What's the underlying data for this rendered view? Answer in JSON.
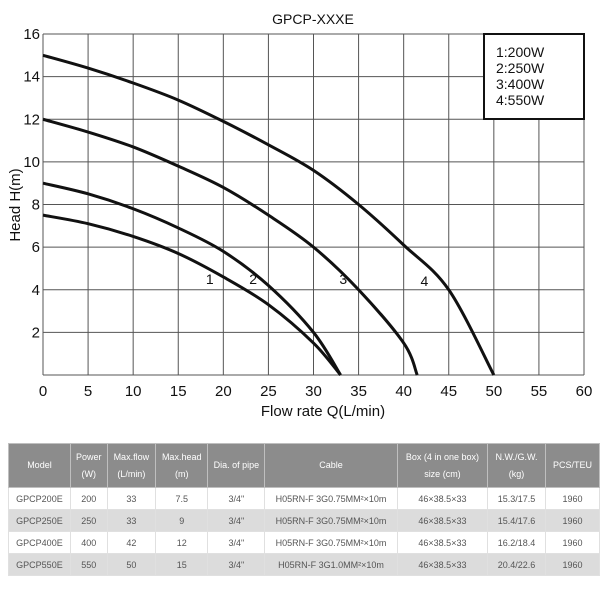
{
  "chart_data": {
    "type": "line",
    "title": "GPCP-XXXE",
    "xlabel": "Flow rate Q(L/min)",
    "ylabel": "Head H(m)",
    "xlim": [
      0,
      60
    ],
    "ylim": [
      0,
      16
    ],
    "x_ticks": [
      0,
      5,
      10,
      15,
      20,
      25,
      30,
      35,
      40,
      45,
      50,
      55,
      60
    ],
    "y_ticks": [
      2,
      4,
      6,
      8,
      10,
      12,
      14,
      16
    ],
    "grid": true,
    "legend_position": "top-right",
    "legend": [
      "1:200W",
      "2:250W",
      "3:400W",
      "4:550W"
    ],
    "series": [
      {
        "name": "1",
        "label": "1:200W",
        "points": [
          [
            0,
            7.5
          ],
          [
            5,
            7.1
          ],
          [
            10,
            6.5
          ],
          [
            15,
            5.7
          ],
          [
            20,
            4.6
          ],
          [
            25,
            3.3
          ],
          [
            30,
            1.5
          ],
          [
            33,
            0
          ]
        ],
        "annotation": {
          "text": "1",
          "x": 18.5,
          "y": 4.5
        }
      },
      {
        "name": "2",
        "label": "2:250W",
        "points": [
          [
            0,
            9
          ],
          [
            5,
            8.5
          ],
          [
            10,
            7.8
          ],
          [
            15,
            6.9
          ],
          [
            20,
            5.8
          ],
          [
            25,
            4.2
          ],
          [
            30,
            2
          ],
          [
            33,
            0
          ]
        ],
        "annotation": {
          "text": "2",
          "x": 23.3,
          "y": 4.5
        }
      },
      {
        "name": "3",
        "label": "3:400W",
        "points": [
          [
            0,
            12
          ],
          [
            5,
            11.4
          ],
          [
            10,
            10.7
          ],
          [
            15,
            9.8
          ],
          [
            20,
            8.8
          ],
          [
            25,
            7.5
          ],
          [
            30,
            6
          ],
          [
            35,
            4
          ],
          [
            40,
            1.5
          ],
          [
            41.5,
            0
          ]
        ],
        "annotation": {
          "text": "3",
          "x": 33.3,
          "y": 4.5
        }
      },
      {
        "name": "4",
        "label": "4:550W",
        "points": [
          [
            0,
            15
          ],
          [
            5,
            14.4
          ],
          [
            10,
            13.7
          ],
          [
            15,
            12.9
          ],
          [
            20,
            11.9
          ],
          [
            25,
            10.8
          ],
          [
            30,
            9.6
          ],
          [
            35,
            8
          ],
          [
            40,
            6.1
          ],
          [
            45,
            4
          ],
          [
            50,
            0
          ]
        ],
        "annotation": {
          "text": "4",
          "x": 42.3,
          "y": 4.4
        }
      }
    ]
  },
  "table": {
    "headers": [
      [
        "Model"
      ],
      [
        "Power",
        "(W)"
      ],
      [
        "Max.flow",
        "(L/min)"
      ],
      [
        "Max.head",
        "(m)"
      ],
      [
        "Dia. of pipe"
      ],
      [
        "Cable"
      ],
      [
        "Box (4 in one box)",
        "size (cm)"
      ],
      [
        "N.W./G.W.",
        "(kg)"
      ],
      [
        "PCS/TEU"
      ]
    ],
    "rows": [
      [
        "GPCP200E",
        "200",
        "33",
        "7.5",
        "3/4\"",
        "H05RN-F 3G0.75MM²×10m",
        "46×38.5×33",
        "15.3/17.5",
        "1960"
      ],
      [
        "GPCP250E",
        "250",
        "33",
        "9",
        "3/4\"",
        "H05RN-F 3G0.75MM²×10m",
        "46×38.5×33",
        "15.4/17.6",
        "1960"
      ],
      [
        "GPCP400E",
        "400",
        "42",
        "12",
        "3/4\"",
        "H05RN-F 3G0.75MM²×10m",
        "46×38.5×33",
        "16.2/18.4",
        "1960"
      ],
      [
        "GPCP550E",
        "550",
        "50",
        "15",
        "3/4\"",
        "H05RN-F 3G1.0MM²×10m",
        "46×38.5×33",
        "20.4/22.6",
        "1960"
      ]
    ]
  }
}
